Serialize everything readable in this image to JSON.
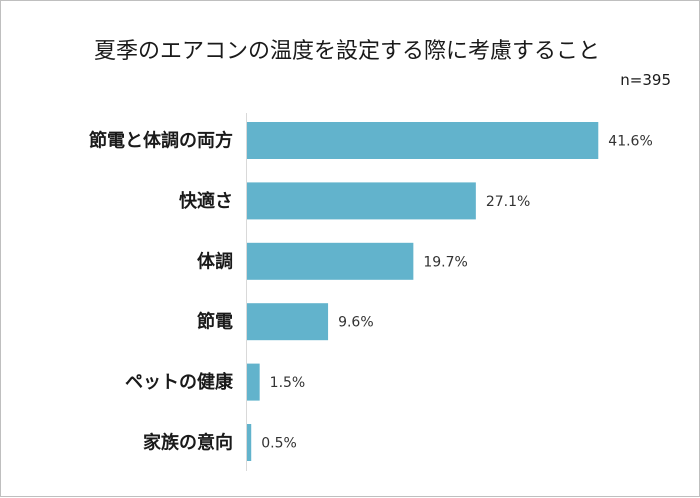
{
  "chart_data": {
    "type": "bar",
    "orientation": "horizontal",
    "title": "夏季のエアコンの温度を設定する際に考慮すること",
    "note": "n=395",
    "categories": [
      "節電と体調の両方",
      "快適さ",
      "体調",
      "節電",
      "ペットの健康",
      "家族の意向"
    ],
    "values": [
      41.6,
      27.1,
      19.7,
      9.6,
      1.5,
      0.5
    ],
    "value_labels": [
      "41.6%",
      "27.1%",
      "19.7%",
      "9.6%",
      "1.5%",
      "0.5%"
    ],
    "unit": "%",
    "xlim": [
      0,
      45
    ],
    "grid": false,
    "legend": "none",
    "bar_color": "#62b3cc"
  }
}
